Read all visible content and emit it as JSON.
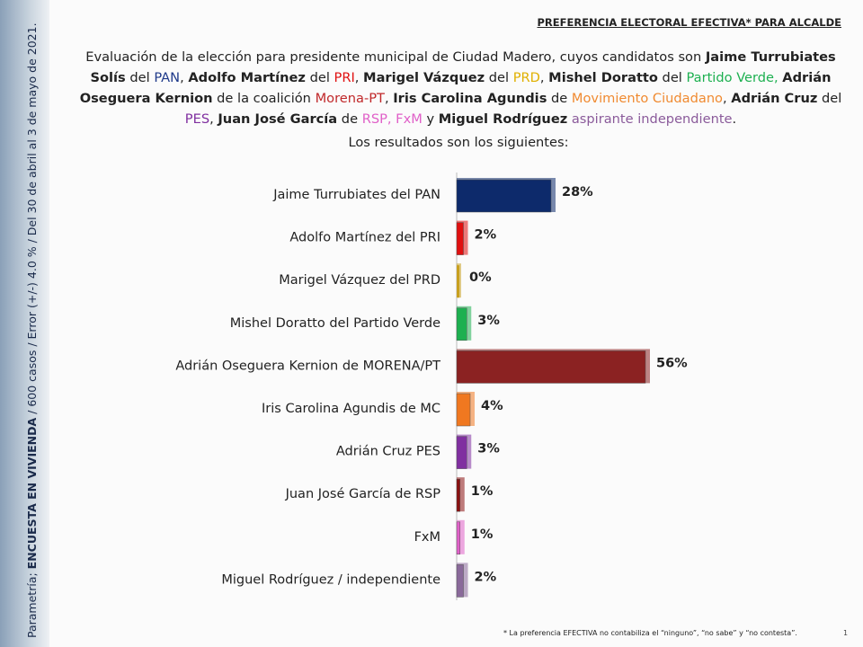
{
  "header": {
    "title": "PREFERENCIA ELECTORAL EFECTIVA* PARA ALCALDE"
  },
  "intro": [
    {
      "text": "Evaluación de la elección para presidente municipal de Ciudad Madero, cuyos candidatos son ",
      "color": "#222222",
      "bold": false
    },
    {
      "text": "Jaime Turrubiates Solís",
      "color": "#222222",
      "bold": true
    },
    {
      "text": " del ",
      "color": "#222222",
      "bold": false
    },
    {
      "text": "PAN",
      "color": "#1f3a8a",
      "bold": false
    },
    {
      "text": ",  ",
      "color": "#222222",
      "bold": false
    },
    {
      "text": "Adolfo Martínez",
      "color": "#222222",
      "bold": true
    },
    {
      "text": " del ",
      "color": "#222222",
      "bold": false
    },
    {
      "text": "PRI",
      "color": "#e01010",
      "bold": false
    },
    {
      "text": ", ",
      "color": "#222222",
      "bold": false
    },
    {
      "text": "Marigel Vázquez",
      "color": "#222222",
      "bold": true
    },
    {
      "text": " del ",
      "color": "#222222",
      "bold": false
    },
    {
      "text": "PRD",
      "color": "#e0b000",
      "bold": false
    },
    {
      "text": ", ",
      "color": "#222222",
      "bold": false
    },
    {
      "text": "Mishel Doratto",
      "color": "#222222",
      "bold": true
    },
    {
      "text": " del ",
      "color": "#222222",
      "bold": false
    },
    {
      "text": "Partido Verde",
      "color": "#1db050",
      "bold": false
    },
    {
      "text": ", ",
      "color": "#1db050",
      "bold": false
    },
    {
      "text": "Adrián Oseguera Kernion",
      "color": "#222222",
      "bold": true
    },
    {
      "text": " de la coalición ",
      "color": "#222222",
      "bold": false
    },
    {
      "text": "Morena-PT",
      "color": "#c0282a",
      "bold": false
    },
    {
      "text": ",  ",
      "color": "#222222",
      "bold": false
    },
    {
      "text": "Iris Carolina Agundis",
      "color": "#222222",
      "bold": true
    },
    {
      "text": " de ",
      "color": "#222222",
      "bold": false
    },
    {
      "text": "Movimiento Ciudadano",
      "color": "#f08a30",
      "bold": false
    },
    {
      "text": ", ",
      "color": "#222222",
      "bold": false
    },
    {
      "text": "Adrián  Cruz",
      "color": "#222222",
      "bold": true
    },
    {
      "text": " del ",
      "color": "#222222",
      "bold": false
    },
    {
      "text": "PES",
      "color": "#8030a0",
      "bold": false
    },
    {
      "text": ", ",
      "color": "#222222",
      "bold": false
    },
    {
      "text": "Juan  José García",
      "color": "#222222",
      "bold": true
    },
    {
      "text": " de ",
      "color": "#222222",
      "bold": false
    },
    {
      "text": "RSP, FxM",
      "color": "#e060c8",
      "bold": false
    },
    {
      "text": " y ",
      "color": "#222222",
      "bold": false
    },
    {
      "text": "Miguel Rodríguez",
      "color": "#222222",
      "bold": true
    },
    {
      "text": " aspirante independiente",
      "color": "#8a5a9a",
      "bold": false
    },
    {
      "text": ".",
      "color": "#222222",
      "bold": false
    }
  ],
  "chart_data": {
    "type": "bar",
    "orientation": "horizontal",
    "subtitle": "Los resultados son los siguientes:",
    "categories": [
      "Jaime Turrubiates del PAN",
      "Adolfo Martínez del PRI",
      "Marigel Vázquez del PRD",
      "Mishel Doratto del Partido Verde",
      "Adrián Oseguera Kernion de MORENA/PT",
      "Iris Carolina Agundis de MC",
      "Adrián Cruz PES",
      "Juan José García de RSP",
      "FxM",
      "Miguel Rodríguez / independiente"
    ],
    "values": [
      28,
      2,
      0,
      3,
      56,
      4,
      3,
      1,
      1,
      2
    ],
    "value_labels": [
      "28%",
      "2%",
      "0%",
      "3%",
      "56%",
      "4%",
      "3%",
      "1%",
      "1%",
      "2%"
    ],
    "colors": [
      "#0d2a6b",
      "#e01010",
      "#c8a020",
      "#1db050",
      "#8b2222",
      "#f07820",
      "#8030a0",
      "#8b1010",
      "#e060c8",
      "#8a6a9a"
    ],
    "xlim": [
      0,
      60
    ]
  },
  "footnote": "* La preferencia EFECTIVA no contabiliza el “ninguno”, “no sabe” y “no contesta”.",
  "page_number": "1",
  "sidebar": [
    {
      "text": "Parametría; ",
      "bold": false
    },
    {
      "text": "ENCUESTA EN VIVIENDA",
      "bold": true
    },
    {
      "text": " / 600 casos / Error (+/-) 4.0 % / Del 30 de abril al 3 de mayo de 2021.",
      "bold": false
    }
  ]
}
